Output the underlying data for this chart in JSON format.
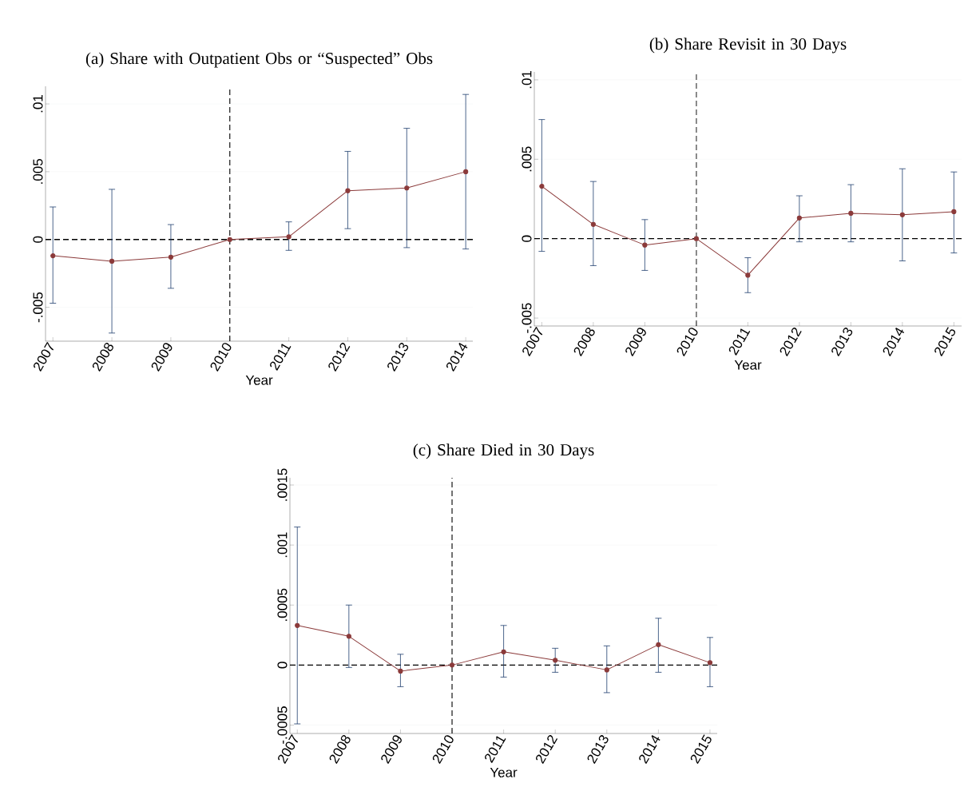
{
  "chart_data": [
    {
      "type": "line",
      "title": "(a) Share with Outpatient Obs or “Suspected” Obs",
      "xlabel": "Year",
      "x": [
        2007,
        2008,
        2009,
        2010,
        2011,
        2012,
        2013,
        2014
      ],
      "series": [
        {
          "color": "#8b3a3a",
          "values": [
            -0.0012,
            -0.0016,
            -0.0013,
            0,
            0.0002,
            0.0036,
            0.0038,
            0.005
          ],
          "errors": [
            [
              -0.0047,
              0.0024
            ],
            [
              -0.0069,
              0.0037
            ],
            [
              -0.0036,
              0.0011
            ],
            null,
            [
              -0.0008,
              0.0013
            ],
            [
              0.0008,
              0.0065
            ],
            [
              -0.0006,
              0.0082
            ],
            [
              -0.0007,
              0.0107
            ]
          ]
        }
      ],
      "xlim": [
        2006.875,
        2014.12
      ],
      "ylim": [
        -0.0075,
        0.0113
      ],
      "xticks": [
        2007,
        2008,
        2009,
        2010,
        2011,
        2012,
        2013,
        2014
      ],
      "yticks": [
        {
          "value": -0.005,
          "label": "-.005"
        },
        {
          "value": 0,
          "label": "0"
        },
        {
          "value": 0.005,
          "label": ".005"
        },
        {
          "value": 0.01,
          "label": ".01"
        }
      ],
      "ref_lines": [
        {
          "axis": "x",
          "value": 2010,
          "line_style": "dashed"
        },
        {
          "axis": "y",
          "value": 0,
          "line_style": "dashed"
        }
      ],
      "grid": "y",
      "marker": "circle",
      "line_style": "solid"
    },
    {
      "type": "line",
      "title": "(b) Share Revisit in 30 Days",
      "xlabel": "Year",
      "x": [
        2007,
        2008,
        2009,
        2010,
        2011,
        2012,
        2013,
        2014,
        2015
      ],
      "series": [
        {
          "color": "#8b3a3a",
          "values": [
            0.0033,
            0.0009,
            -0.0004,
            0,
            -0.0023,
            0.0013,
            0.0016,
            0.0015,
            0.0017
          ],
          "errors": [
            [
              -0.0008,
              0.0075
            ],
            [
              -0.0017,
              0.0036
            ],
            [
              -0.002,
              0.0012
            ],
            null,
            [
              -0.0034,
              -0.0012
            ],
            [
              -0.0002,
              0.0027
            ],
            [
              -0.0002,
              0.0034
            ],
            [
              -0.0014,
              0.0044
            ],
            [
              -0.0009,
              0.0042
            ]
          ]
        }
      ],
      "xlim": [
        2006.855,
        2015.15
      ],
      "ylim": [
        -0.0055,
        0.0105
      ],
      "xticks": [
        2007,
        2008,
        2009,
        2010,
        2011,
        2012,
        2013,
        2014,
        2015
      ],
      "yticks": [
        {
          "value": -0.005,
          "label": "-.005"
        },
        {
          "value": 0,
          "label": "0"
        },
        {
          "value": 0.005,
          "label": ".005"
        },
        {
          "value": 0.01,
          "label": ".01"
        }
      ],
      "ref_lines": [
        {
          "axis": "x",
          "value": 2010,
          "line_style": "dashed"
        },
        {
          "axis": "y",
          "value": 0,
          "line_style": "dashed"
        }
      ],
      "grid": "y",
      "marker": "circle",
      "line_style": "solid"
    },
    {
      "type": "line",
      "title": "(c) Share Died in 30 Days",
      "xlabel": "Year",
      "x": [
        2007,
        2008,
        2009,
        2010,
        2011,
        2012,
        2013,
        2014,
        2015
      ],
      "series": [
        {
          "color": "#8b3a3a",
          "values": [
            0.00033,
            0.00024,
            -5e-05,
            0,
            0.00011,
            4e-05,
            -4e-05,
            0.00017,
            2e-05
          ],
          "errors": [
            [
              -0.00049,
              0.00115
            ],
            [
              -2e-05,
              0.0005
            ],
            [
              -0.00018,
              9e-05
            ],
            null,
            [
              -0.0001,
              0.00033
            ],
            [
              -6e-05,
              0.00014
            ],
            [
              -0.00023,
              0.00016
            ],
            [
              -6e-05,
              0.00039
            ],
            [
              -0.00018,
              0.00023
            ]
          ]
        }
      ],
      "xlim": [
        2006.857,
        2015.14
      ],
      "ylim": [
        -0.00057,
        0.00156
      ],
      "xticks": [
        2007,
        2008,
        2009,
        2010,
        2011,
        2012,
        2013,
        2014,
        2015
      ],
      "yticks": [
        {
          "value": -0.0005,
          "label": "-.0005"
        },
        {
          "value": 0,
          "label": "0"
        },
        {
          "value": 0.0005,
          "label": ".0005"
        },
        {
          "value": 0.001,
          "label": ".001"
        },
        {
          "value": 0.0015,
          "label": ".0015"
        }
      ],
      "ref_lines": [
        {
          "axis": "x",
          "value": 2010,
          "line_style": "dashed"
        },
        {
          "axis": "y",
          "value": 0,
          "line_style": "dashed"
        }
      ],
      "grid": "y",
      "marker": "circle",
      "line_style": "solid"
    }
  ]
}
